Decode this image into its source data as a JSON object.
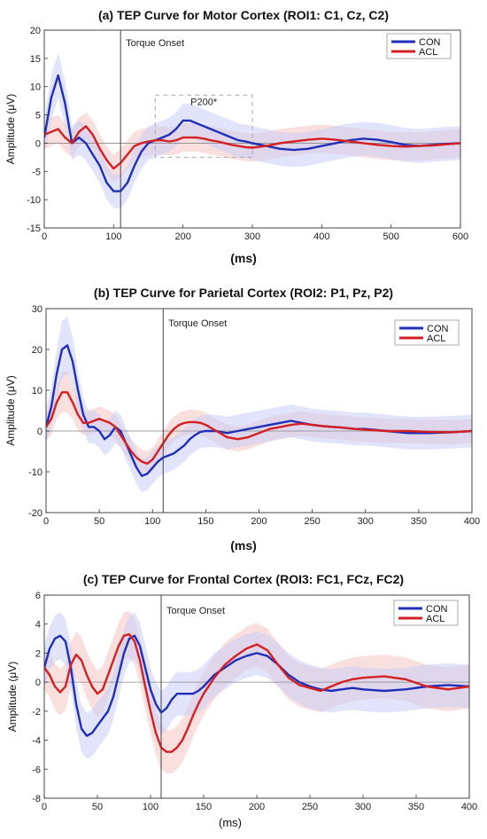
{
  "chart_data": [
    {
      "type": "line",
      "title": "(a) TEP Curve for Motor Cortex (ROI1: C1, Cz, C2)",
      "xlabel": "(ms)",
      "ylabel": "Amplitude (μV)",
      "xlim": [
        0,
        600
      ],
      "ylim": [
        -15,
        20
      ],
      "xticks": [
        0,
        100,
        200,
        300,
        400,
        500,
        600
      ],
      "yticks": [
        -15,
        -10,
        -5,
        0,
        5,
        10,
        15,
        20
      ],
      "grid": false,
      "legend_position": "top-right",
      "vline": {
        "x": 110,
        "label": "Torque Onset"
      },
      "annotation_box": {
        "label": "P200*",
        "x": [
          160,
          300
        ],
        "y": [
          -2.5,
          8.5
        ]
      },
      "colors": {
        "CON": "#1f2fb8",
        "ACL": "#d42020",
        "CON_band": "#c8cdf5",
        "ACL_band": "#f6c4c4"
      },
      "series": [
        {
          "name": "CON",
          "x": [
            0,
            10,
            20,
            30,
            40,
            50,
            60,
            70,
            80,
            90,
            100,
            110,
            120,
            130,
            140,
            150,
            160,
            170,
            180,
            190,
            200,
            210,
            220,
            230,
            240,
            250,
            260,
            270,
            280,
            290,
            300,
            320,
            340,
            360,
            380,
            400,
            420,
            440,
            460,
            480,
            500,
            520,
            540,
            560,
            580,
            600
          ],
          "y": [
            1,
            8,
            12,
            7,
            0,
            1,
            0,
            -2,
            -4,
            -7,
            -8.5,
            -8.5,
            -7,
            -4,
            -1.5,
            0,
            0.5,
            1,
            1.5,
            2.5,
            4,
            4,
            3.5,
            3,
            2.5,
            2,
            1.5,
            1,
            0.5,
            0.3,
            0,
            -0.5,
            -1,
            -1.2,
            -1,
            -0.5,
            0,
            0.5,
            0.8,
            0.6,
            0.2,
            -0.3,
            -0.5,
            -0.3,
            -0.1,
            0
          ],
          "band": [
            3,
            4,
            4,
            4,
            3,
            3,
            3,
            3,
            3,
            3,
            3,
            3,
            3,
            3,
            3,
            3,
            3,
            3,
            3,
            3,
            3,
            3,
            3,
            3,
            3,
            3,
            3,
            3,
            3,
            3,
            3,
            3,
            3,
            3,
            3,
            3,
            3,
            3,
            3,
            3,
            3,
            3,
            3,
            3,
            3,
            3
          ]
        },
        {
          "name": "ACL",
          "x": [
            0,
            10,
            20,
            30,
            40,
            50,
            60,
            70,
            80,
            90,
            100,
            110,
            120,
            130,
            140,
            150,
            160,
            170,
            180,
            190,
            200,
            210,
            220,
            230,
            240,
            250,
            260,
            270,
            280,
            290,
            300,
            320,
            340,
            360,
            380,
            400,
            420,
            440,
            460,
            480,
            500,
            520,
            540,
            560,
            580,
            600
          ],
          "y": [
            1.5,
            2,
            2.5,
            1,
            0,
            2,
            3,
            1.5,
            -1,
            -3,
            -4.5,
            -3.5,
            -2,
            -0.5,
            0,
            0.3,
            0.5,
            0.5,
            0.3,
            0.5,
            1,
            1,
            1,
            0.8,
            0.5,
            0.3,
            0,
            -0.3,
            -0.5,
            -0.7,
            -0.8,
            -0.5,
            0,
            0.3,
            0.6,
            0.8,
            0.6,
            0.3,
            0,
            -0.3,
            -0.5,
            -0.6,
            -0.5,
            -0.4,
            -0.2,
            0
          ],
          "band": [
            2.5,
            2.5,
            2.5,
            2.5,
            2.5,
            2.5,
            2.5,
            2.5,
            2.5,
            2.5,
            2.5,
            2.5,
            2.5,
            2.5,
            2.5,
            2.5,
            2.5,
            2.5,
            2.5,
            2.5,
            2.5,
            2.5,
            2.5,
            2.5,
            2.5,
            2.5,
            2.5,
            2.5,
            2.5,
            2.5,
            2.5,
            2.5,
            2.5,
            2.5,
            2.5,
            2.5,
            2.5,
            2.5,
            2.5,
            2.5,
            2.5,
            2.5,
            2.5,
            2.5,
            2.5,
            2.5
          ]
        }
      ]
    },
    {
      "type": "line",
      "title": "(b) TEP Curve for Parietal Cortex (ROI2: P1, Pz, P2)",
      "xlabel": "(ms)",
      "ylabel": "Amplitude (μV)",
      "xlim": [
        0,
        400
      ],
      "ylim": [
        -20,
        30
      ],
      "xticks": [
        0,
        50,
        100,
        150,
        200,
        250,
        300,
        350,
        400
      ],
      "yticks": [
        -20,
        -10,
        0,
        10,
        20,
        30
      ],
      "grid": false,
      "legend_position": "top-right",
      "vline": {
        "x": 110,
        "label": "Torque Onset"
      },
      "colors": {
        "CON": "#1f2fb8",
        "ACL": "#d42020",
        "CON_band": "#c8cdf5",
        "ACL_band": "#f6c4c4"
      },
      "series": [
        {
          "name": "CON",
          "x": [
            0,
            5,
            10,
            15,
            20,
            25,
            30,
            35,
            40,
            45,
            50,
            55,
            60,
            65,
            70,
            75,
            80,
            85,
            90,
            95,
            100,
            105,
            110,
            115,
            120,
            125,
            130,
            135,
            140,
            145,
            150,
            160,
            170,
            180,
            190,
            200,
            210,
            220,
            230,
            240,
            250,
            260,
            270,
            280,
            290,
            300,
            320,
            340,
            360,
            380,
            400
          ],
          "y": [
            1,
            6,
            14,
            20,
            21,
            17,
            10,
            4,
            1,
            1,
            0,
            -2,
            -1,
            1,
            0,
            -3,
            -6,
            -9,
            -11,
            -10.5,
            -9,
            -7.5,
            -6.5,
            -6,
            -5.5,
            -4.5,
            -3.5,
            -2,
            -1,
            -0.2,
            0,
            0,
            -0.5,
            0,
            0.5,
            1,
            1.5,
            2,
            2.5,
            2,
            1.5,
            1.2,
            1,
            0.8,
            0.5,
            0.5,
            0,
            -0.5,
            -0.5,
            -0.3,
            0
          ],
          "band": [
            4,
            5,
            6,
            7,
            7,
            6,
            5,
            4,
            4,
            4,
            4,
            4,
            4,
            4,
            4,
            4,
            4,
            4,
            4,
            4,
            4,
            4,
            4,
            4,
            4,
            4,
            4,
            4,
            4,
            4,
            4,
            4,
            4,
            4,
            4,
            4,
            4,
            4,
            4,
            4,
            4,
            4,
            4,
            4,
            4,
            4,
            4,
            4,
            4,
            4,
            4
          ]
        },
        {
          "name": "ACL",
          "x": [
            0,
            5,
            10,
            15,
            20,
            25,
            30,
            35,
            40,
            45,
            50,
            55,
            60,
            65,
            70,
            75,
            80,
            85,
            90,
            95,
            100,
            105,
            110,
            115,
            120,
            125,
            130,
            135,
            140,
            145,
            150,
            160,
            170,
            180,
            190,
            200,
            210,
            220,
            230,
            240,
            250,
            260,
            270,
            280,
            290,
            300,
            320,
            340,
            360,
            380,
            400
          ],
          "y": [
            1,
            3,
            7,
            9.5,
            9.5,
            7,
            4,
            2,
            2,
            2.5,
            3,
            2.5,
            2,
            1,
            -1,
            -3,
            -5,
            -6.5,
            -7.5,
            -8,
            -7,
            -5,
            -3,
            -1,
            0.5,
            1.5,
            2,
            2.2,
            2.2,
            2,
            1.5,
            0,
            -1.5,
            -2,
            -1.5,
            -0.5,
            0.5,
            1,
            1.5,
            1.8,
            1.5,
            1.2,
            1,
            0.8,
            0.5,
            0.3,
            0,
            0,
            -0.2,
            -0.3,
            0
          ],
          "band": [
            3,
            4,
            4,
            5,
            5,
            4,
            4,
            3,
            3,
            3,
            3,
            3,
            3,
            3,
            3,
            3,
            3,
            3,
            3,
            3,
            3,
            3,
            3,
            3,
            3,
            3,
            3,
            3,
            3,
            3,
            3,
            3,
            3,
            3,
            3,
            3,
            3,
            3,
            3,
            3,
            3,
            3,
            3,
            3,
            3,
            3,
            3,
            3,
            3,
            3,
            3
          ]
        }
      ]
    },
    {
      "type": "line",
      "title": "(c) TEP Curve for Frontal Cortex (ROI3: FC1, FCz, FC2)",
      "xlabel": "(ms)",
      "ylabel": "Amplitude (μV)",
      "xlim": [
        0,
        400
      ],
      "ylim": [
        -8,
        6
      ],
      "xticks": [
        0,
        50,
        100,
        150,
        200,
        250,
        300,
        350,
        400
      ],
      "yticks": [
        -8,
        -6,
        -4,
        -2,
        0,
        2,
        4,
        6
      ],
      "grid": false,
      "legend_position": "top-right",
      "vline": {
        "x": 110,
        "label": "Torque Onset"
      },
      "colors": {
        "CON": "#1f2fb8",
        "ACL": "#d42020",
        "CON_band": "#c8cdf5",
        "ACL_band": "#f6c4c4"
      },
      "series": [
        {
          "name": "CON",
          "x": [
            0,
            5,
            10,
            15,
            20,
            25,
            30,
            35,
            40,
            45,
            50,
            55,
            60,
            65,
            70,
            75,
            80,
            85,
            90,
            95,
            100,
            105,
            110,
            115,
            120,
            125,
            130,
            135,
            140,
            145,
            150,
            160,
            170,
            180,
            190,
            200,
            210,
            220,
            230,
            240,
            250,
            260,
            270,
            280,
            290,
            300,
            320,
            340,
            360,
            380,
            400
          ],
          "y": [
            1,
            2.3,
            3,
            3.2,
            2.8,
            1,
            -1.5,
            -3.2,
            -3.7,
            -3.5,
            -3,
            -2.5,
            -2,
            -1,
            0.5,
            2,
            3,
            3.2,
            2.5,
            1,
            -0.5,
            -1.5,
            -2.1,
            -1.8,
            -1.2,
            -0.8,
            -0.8,
            -0.8,
            -0.8,
            -0.6,
            -0.3,
            0.5,
            1,
            1.5,
            1.8,
            2,
            1.8,
            1.2,
            0.5,
            0,
            -0.3,
            -0.5,
            -0.6,
            -0.5,
            -0.4,
            -0.5,
            -0.6,
            -0.5,
            -0.3,
            -0.2,
            -0.3
          ],
          "band": [
            1.5,
            1.5,
            1.6,
            1.6,
            1.6,
            1.6,
            1.6,
            1.6,
            1.6,
            1.6,
            1.6,
            1.6,
            1.6,
            1.6,
            1.6,
            1.6,
            1.6,
            1.6,
            1.6,
            1.6,
            1.5,
            1.5,
            1.5,
            1.5,
            1.5,
            1.5,
            1.5,
            1.5,
            1.5,
            1.5,
            1.5,
            1.5,
            1.5,
            1.5,
            1.5,
            1.5,
            1.5,
            1.5,
            1.5,
            1.5,
            1.5,
            1.5,
            1.5,
            1.5,
            1.5,
            1.5,
            1.5,
            1.5,
            1.5,
            1.5,
            1.5
          ]
        },
        {
          "name": "ACL",
          "x": [
            0,
            5,
            10,
            15,
            20,
            25,
            30,
            35,
            40,
            45,
            50,
            55,
            60,
            65,
            70,
            75,
            80,
            85,
            90,
            95,
            100,
            105,
            110,
            115,
            120,
            125,
            130,
            135,
            140,
            145,
            150,
            160,
            170,
            180,
            190,
            200,
            210,
            220,
            230,
            240,
            250,
            260,
            270,
            280,
            290,
            300,
            320,
            340,
            360,
            380,
            400
          ],
          "y": [
            1,
            0.5,
            -0.3,
            -0.7,
            -0.3,
            1.2,
            1.9,
            1.5,
            0.5,
            -0.3,
            -0.8,
            -0.5,
            0.5,
            1.5,
            2.5,
            3.2,
            3.3,
            2.8,
            1.5,
            -0.3,
            -2,
            -3.5,
            -4.5,
            -4.8,
            -4.8,
            -4.5,
            -4,
            -3.2,
            -2.3,
            -1.5,
            -0.8,
            0.3,
            1.2,
            1.8,
            2.3,
            2.6,
            2.2,
            1.2,
            0.3,
            -0.2,
            -0.4,
            -0.6,
            -0.3,
            0,
            0.2,
            0.3,
            0.4,
            0.2,
            -0.3,
            -0.5,
            -0.3
          ],
          "band": [
            1.5,
            1.5,
            1.6,
            1.6,
            1.6,
            1.6,
            1.6,
            1.6,
            1.6,
            1.6,
            1.6,
            1.6,
            1.6,
            1.6,
            1.6,
            1.6,
            1.6,
            1.6,
            1.6,
            1.6,
            1.5,
            1.5,
            1.5,
            1.5,
            1.5,
            1.5,
            1.5,
            1.5,
            1.5,
            1.5,
            1.5,
            1.5,
            1.5,
            1.5,
            1.5,
            1.5,
            1.5,
            1.5,
            1.5,
            1.5,
            1.5,
            1.5,
            1.5,
            1.5,
            1.5,
            1.5,
            1.5,
            1.5,
            1.5,
            1.5,
            1.5
          ]
        }
      ]
    }
  ]
}
